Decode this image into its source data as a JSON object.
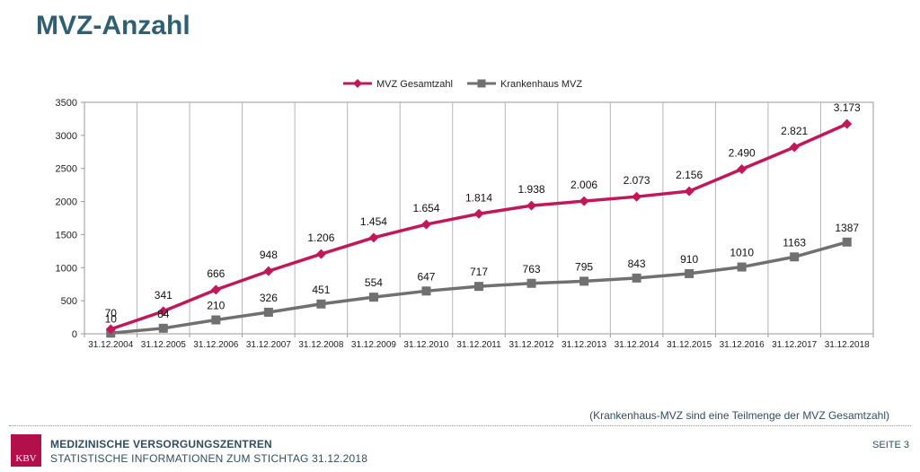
{
  "page": {
    "title": "MVZ-Anzahl",
    "footnote": "(Krankenhaus-MVZ sind eine Teilmenge der MVZ Gesamtzahl)",
    "footer": {
      "logo_text": "KBV",
      "line1": "MEDIZINISCHE VERSORGUNGSZENTREN",
      "line2": "STATISTISCHE INFORMATIONEN ZUM STICHTAG 31.12.2018",
      "page_label": "SEITE 3"
    }
  },
  "chart_data": {
    "type": "line",
    "title": "",
    "xlabel": "",
    "ylabel": "",
    "ylim": [
      0,
      3500
    ],
    "yticks": [
      0,
      500,
      1000,
      1500,
      2000,
      2500,
      3000,
      3500
    ],
    "grid": {
      "vertical": true,
      "horizontal": false
    },
    "legend_position": "top-center",
    "categories": [
      "31.12.2004",
      "31.12.2005",
      "31.12.2006",
      "31.12.2007",
      "31.12.2008",
      "31.12.2009",
      "31.12.2010",
      "31.12.2011",
      "31.12.2012",
      "31.12.2013",
      "31.12.2014",
      "31.12.2015",
      "31.12.2016",
      "31.12.2017",
      "31.12.2018"
    ],
    "series": [
      {
        "name": "MVZ Gesamtzahl",
        "color": "#c2185b",
        "marker": "diamond",
        "values": [
          70,
          341,
          666,
          948,
          1206,
          1454,
          1654,
          1814,
          1938,
          2006,
          2073,
          2156,
          2490,
          2821,
          3173
        ],
        "labels": [
          "70",
          "341",
          "666",
          "948",
          "1.206",
          "1.454",
          "1.654",
          "1.814",
          "1.938",
          "2.006",
          "2.073",
          "2.156",
          "2.490",
          "2.821",
          "3.173"
        ]
      },
      {
        "name": "Krankenhaus MVZ",
        "color": "#707070",
        "marker": "square",
        "values": [
          10,
          84,
          210,
          326,
          451,
          554,
          647,
          717,
          763,
          795,
          843,
          910,
          1010,
          1163,
          1387
        ],
        "labels": [
          "10",
          "84",
          "210",
          "326",
          "451",
          "554",
          "647",
          "717",
          "763",
          "795",
          "843",
          "910",
          "1010",
          "1163",
          "1387"
        ]
      }
    ]
  }
}
